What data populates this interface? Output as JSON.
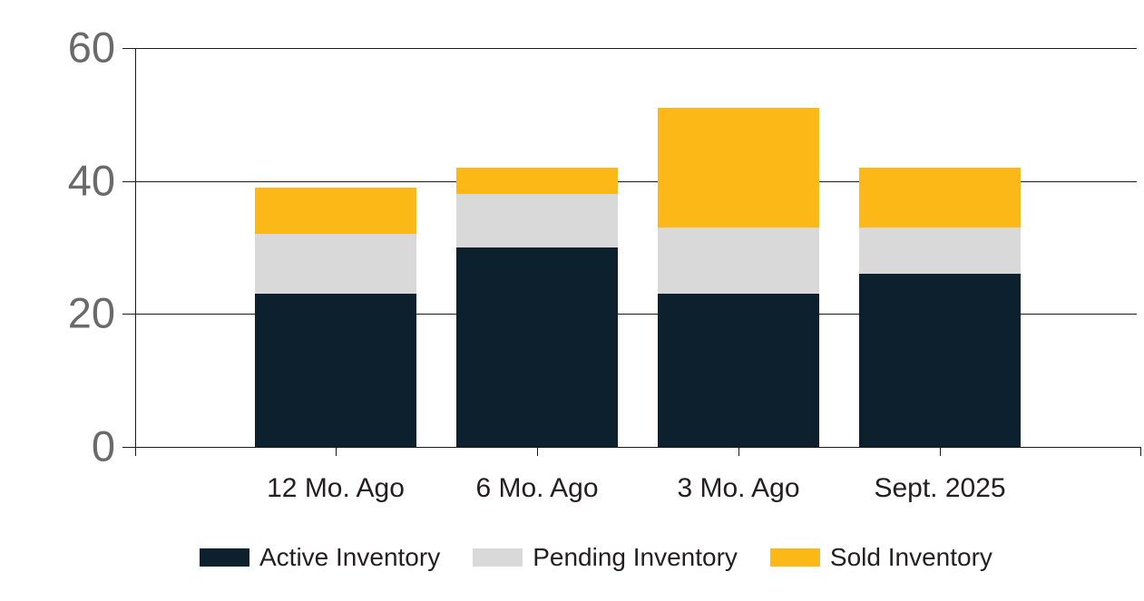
{
  "chart_data": {
    "type": "bar",
    "stacked": true,
    "title": "",
    "xlabel": "",
    "ylabel": "",
    "categories": [
      "12 Mo. Ago",
      "6 Mo. Ago",
      "3 Mo. Ago",
      "Sept. 2025"
    ],
    "series": [
      {
        "name": "Active Inventory",
        "color": "#0c202e",
        "values": [
          23,
          30,
          23,
          26
        ]
      },
      {
        "name": "Pending Inventory",
        "color": "#d9d9d9",
        "values": [
          9,
          8,
          10,
          7
        ]
      },
      {
        "name": "Sold Inventory",
        "color": "#fbb817",
        "values": [
          7,
          4,
          18,
          9
        ]
      }
    ],
    "ylim": [
      0,
      60
    ],
    "yticks": [
      0,
      20,
      40,
      60
    ],
    "grid": "horizontal",
    "legend_position": "bottom"
  },
  "colors": {
    "background": "#ffffff",
    "axis_line": "#1b1b1b",
    "y_tick_label": "#6a6a6a",
    "x_tick_label": "#231f20",
    "legend_text": "#231f20"
  }
}
